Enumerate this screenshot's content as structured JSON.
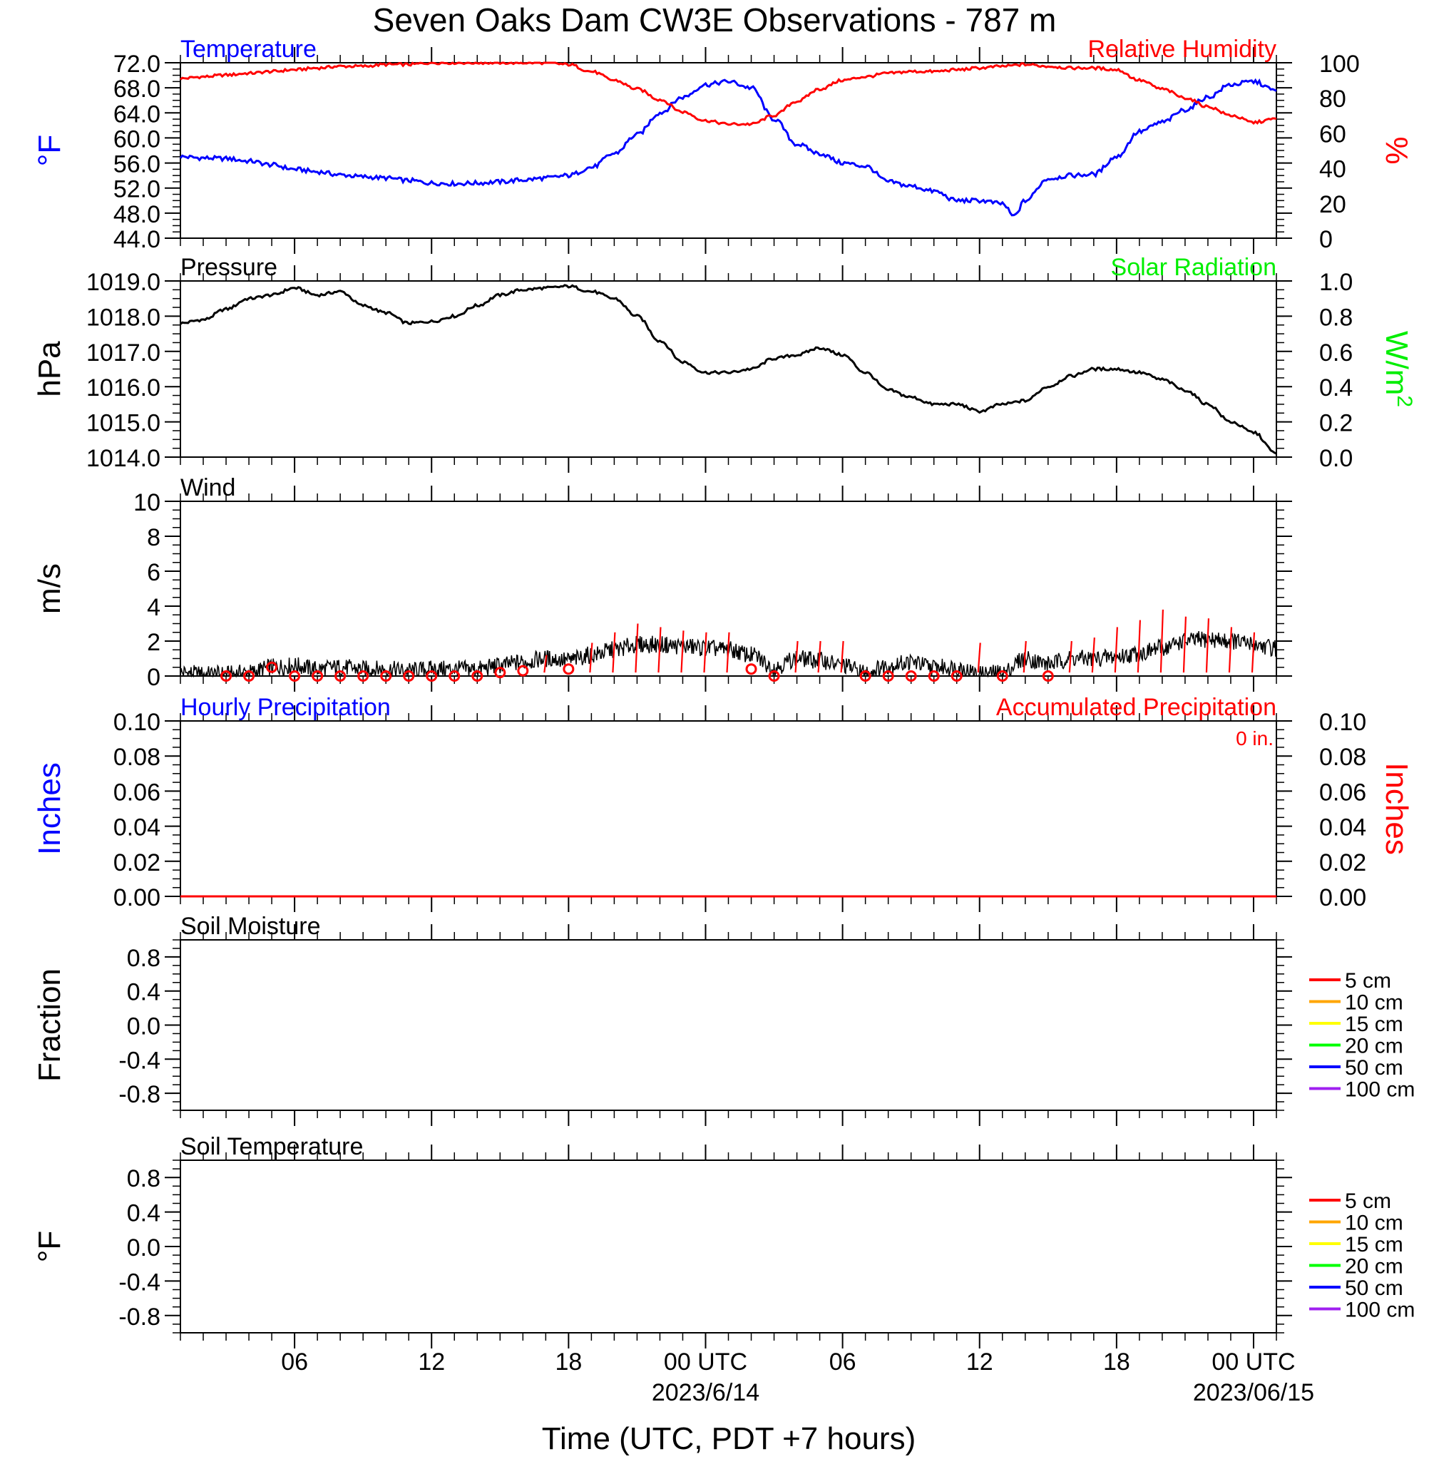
{
  "chart_data": {
    "type": "line",
    "title": "Seven Oaks Dam CW3E Observations - 787 m",
    "xlabel": "Time (UTC, PDT +7 hours)",
    "x_tick_labels": [
      "06",
      "12",
      "18",
      "00 UTC",
      "06",
      "12",
      "18",
      "00 UTC"
    ],
    "x_tick_hours": [
      6,
      12,
      18,
      24,
      30,
      36,
      42,
      48
    ],
    "x_date_labels": [
      {
        "hour": 24,
        "text": "2023/6/14"
      },
      {
        "hour": 48,
        "text": "2023/06/15"
      }
    ],
    "x_range_hours": [
      1,
      49
    ],
    "panels": [
      {
        "id": "temp_rh",
        "left_title": "Temperature",
        "right_title": "Relative Humidity",
        "left_ylabel": "°F",
        "right_ylabel": "%",
        "left_ylim": [
          44,
          72
        ],
        "left_ticks": [
          "72.0",
          "68.0",
          "64.0",
          "60.0",
          "56.0",
          "52.0",
          "48.0",
          "44.0"
        ],
        "right_ylim": [
          0,
          100
        ],
        "right_ticks": [
          "100",
          "80",
          "60",
          "40",
          "20",
          "0"
        ],
        "series": [
          {
            "name": "Temperature",
            "axis": "left",
            "color": "#0000ff",
            "x": [
              1,
              2,
              3,
              4,
              5,
              6,
              7,
              8,
              9,
              10,
              11,
              12,
              13,
              14,
              15,
              16,
              17,
              18,
              19,
              20,
              21,
              22,
              23,
              24,
              25,
              26,
              27,
              28,
              29,
              30,
              31,
              32,
              33,
              34,
              35,
              36,
              37,
              37.5,
              38,
              39,
              40,
              41,
              42,
              43,
              44,
              45,
              46,
              47,
              48,
              49
            ],
            "y": [
              57,
              56.8,
              56.7,
              56.3,
              55.7,
              55,
              54.6,
              54.1,
              53.8,
              53.6,
              53.2,
              52.8,
              52.7,
              52.8,
              53,
              53.3,
              53.6,
              54,
              55.3,
              57.5,
              60.5,
              64,
              66.5,
              68.5,
              69,
              68,
              63,
              59,
              57.5,
              56,
              55.5,
              53,
              52.3,
              51.5,
              50,
              50,
              49.5,
              47.5,
              50,
              53.5,
              54,
              54.2,
              57,
              61,
              62.5,
              64.5,
              66.5,
              68.5,
              69,
              67.5
            ]
          },
          {
            "name": "Relative Humidity",
            "axis": "right",
            "color": "#ff0000",
            "x": [
              1,
              2,
              3,
              4,
              5,
              6,
              7,
              8,
              9,
              10,
              11,
              12,
              13,
              14,
              15,
              16,
              17,
              18,
              19,
              20,
              21,
              22,
              23,
              24,
              25,
              26,
              27,
              28,
              29,
              30,
              31,
              32,
              33,
              34,
              35,
              36,
              37,
              38,
              39,
              40,
              41,
              42,
              43,
              44,
              45,
              46,
              47,
              48,
              49
            ],
            "y": [
              91,
              92,
              93,
              94,
              95,
              96,
              97,
              98,
              98,
              99,
              99,
              100,
              100,
              100,
              100,
              100,
              100,
              99,
              95,
              90,
              85,
              79,
              72,
              67,
              65,
              65,
              70,
              78,
              85,
              90,
              92,
              94,
              95,
              95,
              96,
              97,
              98,
              99,
              98,
              97,
              97,
              96,
              90,
              85,
              80,
              75,
              70,
              66,
              68
            ]
          }
        ]
      },
      {
        "id": "pressure",
        "left_title": "Pressure",
        "right_title": "Solar Radiation",
        "left_ylabel": "hPa",
        "right_ylabel": "W/m",
        "right_ylabel_sup": "2",
        "left_ylim": [
          1014,
          1019
        ],
        "left_ticks": [
          "1019.0",
          "1018.0",
          "1017.0",
          "1016.0",
          "1015.0",
          "1014.0"
        ],
        "right_ylim": [
          0,
          1
        ],
        "right_ticks": [
          "1.0",
          "0.8",
          "0.6",
          "0.4",
          "0.2",
          "0.0"
        ],
        "series": [
          {
            "name": "Pressure",
            "axis": "left",
            "color": "#000000",
            "x": [
              1,
              2,
              3,
              4,
              5,
              6,
              7,
              8,
              9,
              10,
              11,
              12,
              13,
              14,
              15,
              16,
              17,
              18,
              19,
              20,
              21,
              22,
              23,
              24,
              25,
              26,
              27,
              28,
              29,
              30,
              31,
              32,
              33,
              34,
              35,
              36,
              37,
              38,
              39,
              40,
              41,
              42,
              43,
              44,
              45,
              46,
              47,
              48,
              49
            ],
            "y": [
              1017.8,
              1017.9,
              1018.2,
              1018.5,
              1018.6,
              1018.8,
              1018.6,
              1018.7,
              1018.3,
              1018.1,
              1017.8,
              1017.85,
              1018.0,
              1018.3,
              1018.6,
              1018.75,
              1018.8,
              1018.85,
              1018.7,
              1018.5,
              1018.0,
              1017.3,
              1016.7,
              1016.4,
              1016.4,
              1016.5,
              1016.8,
              1016.9,
              1017.1,
              1016.9,
              1016.4,
              1015.9,
              1015.7,
              1015.5,
              1015.5,
              1015.3,
              1015.5,
              1015.6,
              1016.0,
              1016.3,
              1016.5,
              1016.5,
              1016.4,
              1016.2,
              1015.9,
              1015.5,
              1015.0,
              1014.7,
              1014.1
            ]
          }
        ]
      },
      {
        "id": "wind",
        "left_title": "Wind",
        "left_ylabel": "m/s",
        "left_ylim": [
          0,
          10
        ],
        "left_ticks": [
          "10",
          "8",
          "6",
          "4",
          "2",
          "0"
        ],
        "series": [
          {
            "name": "Wind",
            "axis": "left",
            "color": "#000000",
            "x": [
              1,
              2,
              3,
              4,
              5,
              6,
              7,
              8,
              9,
              10,
              11,
              12,
              13,
              14,
              15,
              16,
              17,
              18,
              19,
              20,
              21,
              22,
              23,
              24,
              25,
              26,
              27,
              28,
              29,
              30,
              31,
              32,
              33,
              34,
              35,
              36,
              37,
              38,
              39,
              40,
              41,
              42,
              43,
              44,
              45,
              46,
              47,
              48,
              49
            ],
            "y": [
              0.2,
              0.1,
              0.1,
              0.2,
              0.5,
              0.6,
              0.4,
              0.5,
              0.4,
              0.4,
              0.3,
              0.4,
              0.4,
              0.4,
              0.6,
              0.8,
              1.0,
              0.9,
              1.2,
              1.5,
              1.8,
              1.8,
              1.7,
              1.6,
              1.5,
              1.2,
              0.5,
              1.0,
              0.9,
              0.6,
              0.2,
              0.6,
              0.8,
              0.5,
              0.5,
              0.1,
              0.2,
              1.0,
              0.7,
              1.0,
              1.0,
              1.1,
              1.3,
              1.6,
              2.0,
              2.1,
              2.0,
              1.8,
              1.6
            ]
          }
        ],
        "markers": {
          "color": "#ff0000",
          "circle_hours": [
            3,
            4,
            5,
            6,
            7,
            8,
            9,
            10,
            11,
            12,
            13,
            14,
            15,
            16,
            18,
            26,
            27,
            31,
            32,
            33,
            34,
            35,
            37,
            39
          ],
          "circle_values": [
            0,
            0,
            0.5,
            0,
            0,
            0,
            0,
            0,
            0,
            0,
            0,
            0,
            0.2,
            0.3,
            0.4,
            0.4,
            0,
            0,
            0,
            0,
            0,
            0,
            0,
            0
          ],
          "barb_hours": [
            17,
            19,
            20,
            21,
            22,
            23,
            24,
            25,
            28,
            29,
            30,
            36,
            38,
            40,
            41,
            42,
            43,
            44,
            45,
            46,
            47,
            48
          ],
          "barb_lengths": [
            1.2,
            1.9,
            2.5,
            3.0,
            2.8,
            2.6,
            2.5,
            2.5,
            2.0,
            2.0,
            2.0,
            1.9,
            2.0,
            2.0,
            2.2,
            2.8,
            3.2,
            3.8,
            3.4,
            3.3,
            2.8,
            2.5
          ]
        }
      },
      {
        "id": "precip",
        "left_title": "Hourly Precipitation",
        "right_title": "Accumulated Precipitation",
        "annotation": "0 in.",
        "left_ylabel": "Inches",
        "right_ylabel": "Inches",
        "left_ylim": [
          0,
          0.1
        ],
        "left_ticks": [
          "0.10",
          "0.08",
          "0.06",
          "0.04",
          "0.02",
          "0.00"
        ],
        "right_ylim": [
          0,
          0.1
        ],
        "right_ticks": [
          "0.10",
          "0.08",
          "0.06",
          "0.04",
          "0.02",
          "0.00"
        ],
        "series": [
          {
            "name": "Accumulated Precipitation",
            "axis": "right",
            "color": "#ff0000",
            "x": [
              1,
              49
            ],
            "y": [
              0,
              0
            ]
          }
        ]
      },
      {
        "id": "soil_moisture",
        "left_title": "Soil Moisture",
        "left_ylabel": "Fraction",
        "left_ylim": [
          -1,
          1
        ],
        "left_ticks": [
          "0.8",
          "0.4",
          "0.0",
          "-0.4",
          "-0.8"
        ],
        "legend": [
          {
            "label": "5 cm",
            "color": "#ff0000"
          },
          {
            "label": "10 cm",
            "color": "#ffa500"
          },
          {
            "label": "15 cm",
            "color": "#ffff00"
          },
          {
            "label": "20 cm",
            "color": "#00ff00"
          },
          {
            "label": "50 cm",
            "color": "#0000ff"
          },
          {
            "label": "100 cm",
            "color": "#a020f0"
          }
        ]
      },
      {
        "id": "soil_temp",
        "left_title": "Soil Temperature",
        "left_ylabel": "°F",
        "left_ylim": [
          -1,
          1
        ],
        "left_ticks": [
          "0.8",
          "0.4",
          "0.0",
          "-0.4",
          "-0.8"
        ],
        "legend": [
          {
            "label": "5 cm",
            "color": "#ff0000"
          },
          {
            "label": "10 cm",
            "color": "#ffa500"
          },
          {
            "label": "15 cm",
            "color": "#ffff00"
          },
          {
            "label": "20 cm",
            "color": "#00ff00"
          },
          {
            "label": "50 cm",
            "color": "#0000ff"
          },
          {
            "label": "100 cm",
            "color": "#a020f0"
          }
        ]
      }
    ],
    "colors": {
      "left_title_temp": "#0000ff",
      "right_title_rh": "#ff0000",
      "right_title_solar": "#00ee00",
      "left_title_precip": "#0000ff",
      "right_title_precip": "#ff0000"
    }
  }
}
